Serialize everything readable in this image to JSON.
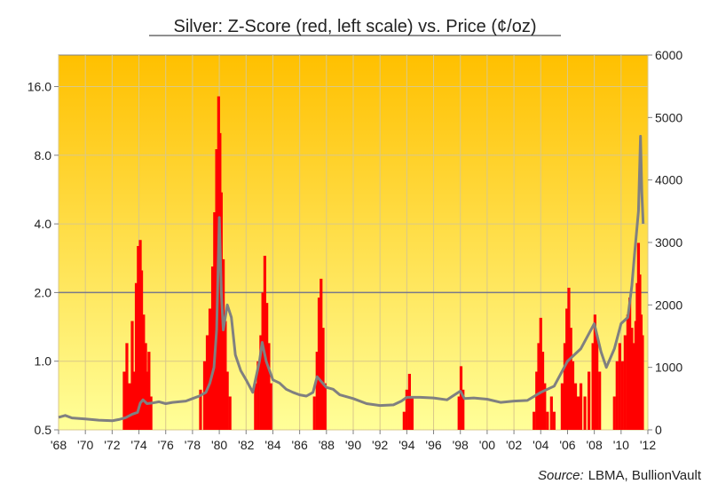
{
  "chart_data": {
    "type": "line",
    "title": "Silver: Z-Score (red, left scale) vs. Price (¢/oz)",
    "source_label": "Source:",
    "source_text": "LBMA, BullionVault",
    "x_tick_labels": [
      "'68",
      "'70",
      "'72",
      "'74",
      "'76",
      "'78",
      "'80",
      "'82",
      "'84",
      "'86",
      "'88",
      "'90",
      "'92",
      "'94",
      "'96",
      "'98",
      "'00",
      "'02",
      "'04",
      "'06",
      "'08",
      "'10",
      "'12"
    ],
    "x_range": [
      1968,
      2012
    ],
    "y_left": {
      "scale": "log2",
      "range": [
        0.5,
        22
      ],
      "tick_values": [
        0.5,
        1,
        2,
        4,
        8,
        16
      ],
      "tick_labels": [
        "0.5",
        "1.0",
        "2.0",
        "4.0",
        "8.0",
        "16.0"
      ]
    },
    "y_right": {
      "scale": "linear",
      "range": [
        0,
        6000
      ],
      "tick_values": [
        0,
        1000,
        2000,
        3000,
        4000,
        5000,
        6000
      ],
      "tick_labels": [
        "0",
        "1000",
        "2000",
        "3000",
        "4000",
        "5000",
        "6000"
      ]
    },
    "grid": true,
    "reference_line_left": 2.0,
    "colors": {
      "zscore": "#ff0000",
      "price": "#808080",
      "grid": "#d9c88a",
      "ref_line": "#7a7a8a",
      "bg_top": "#ffc000",
      "bg_bottom": "#ffff99"
    },
    "series": [
      {
        "key": "zscore",
        "axis": "left",
        "style": "spikes",
        "points": [
          [
            1972.9,
            0.9
          ],
          [
            1973.1,
            1.2
          ],
          [
            1973.3,
            0.8
          ],
          [
            1973.5,
            1.5
          ],
          [
            1973.6,
            0.9
          ],
          [
            1973.8,
            2.2
          ],
          [
            1973.95,
            3.2
          ],
          [
            1974.1,
            3.4
          ],
          [
            1974.2,
            2.5
          ],
          [
            1974.35,
            1.6
          ],
          [
            1974.5,
            1.2
          ],
          [
            1974.6,
            0.9
          ],
          [
            1974.75,
            1.1
          ],
          [
            1974.9,
            0.7
          ],
          [
            1978.6,
            0.75
          ],
          [
            1978.9,
            1.0
          ],
          [
            1979.1,
            1.3
          ],
          [
            1979.3,
            1.7
          ],
          [
            1979.5,
            2.6
          ],
          [
            1979.65,
            4.5
          ],
          [
            1979.8,
            8.5
          ],
          [
            1979.95,
            14.5
          ],
          [
            1980.05,
            10.0
          ],
          [
            1980.15,
            5.5
          ],
          [
            1980.3,
            2.8
          ],
          [
            1980.45,
            1.5
          ],
          [
            1980.6,
            0.9
          ],
          [
            1980.8,
            0.7
          ],
          [
            1982.7,
            0.8
          ],
          [
            1982.9,
            1.0
          ],
          [
            1983.1,
            1.3
          ],
          [
            1983.25,
            2.0
          ],
          [
            1983.4,
            2.9
          ],
          [
            1983.55,
            1.8
          ],
          [
            1983.7,
            1.2
          ],
          [
            1983.85,
            0.8
          ],
          [
            1987.1,
            0.7
          ],
          [
            1987.3,
            1.1
          ],
          [
            1987.45,
            1.9
          ],
          [
            1987.6,
            2.3
          ],
          [
            1987.75,
            1.4
          ],
          [
            1987.9,
            0.8
          ],
          [
            1993.8,
            0.6
          ],
          [
            1994.0,
            0.75
          ],
          [
            1994.2,
            0.88
          ],
          [
            1994.4,
            0.7
          ],
          [
            1997.9,
            0.7
          ],
          [
            1998.05,
            0.95
          ],
          [
            1998.2,
            0.75
          ],
          [
            2003.5,
            0.6
          ],
          [
            2003.7,
            0.9
          ],
          [
            2003.85,
            1.2
          ],
          [
            2004.0,
            1.55
          ],
          [
            2004.15,
            1.1
          ],
          [
            2004.3,
            0.8
          ],
          [
            2004.5,
            0.6
          ],
          [
            2004.8,
            0.7
          ],
          [
            2005.0,
            0.6
          ],
          [
            2005.6,
            0.8
          ],
          [
            2005.8,
            1.2
          ],
          [
            2005.95,
            1.7
          ],
          [
            2006.1,
            2.1
          ],
          [
            2006.25,
            1.4
          ],
          [
            2006.4,
            1.0
          ],
          [
            2006.6,
            0.8
          ],
          [
            2006.8,
            0.7
          ],
          [
            2007.0,
            0.8
          ],
          [
            2007.3,
            0.7
          ],
          [
            2007.6,
            0.9
          ],
          [
            2007.9,
            1.2
          ],
          [
            2008.05,
            1.6
          ],
          [
            2008.2,
            1.3
          ],
          [
            2008.4,
            0.9
          ],
          [
            2009.5,
            0.7
          ],
          [
            2009.7,
            1.0
          ],
          [
            2009.9,
            1.2
          ],
          [
            2010.1,
            1.0
          ],
          [
            2010.3,
            1.3
          ],
          [
            2010.5,
            1.6
          ],
          [
            2010.65,
            1.9
          ],
          [
            2010.8,
            1.4
          ],
          [
            2010.95,
            1.2
          ],
          [
            2011.1,
            1.5
          ],
          [
            2011.2,
            2.2
          ],
          [
            2011.3,
            3.3
          ],
          [
            2011.4,
            2.4
          ],
          [
            2011.5,
            1.6
          ],
          [
            2011.6,
            1.3
          ]
        ]
      },
      {
        "key": "price",
        "axis": "right",
        "style": "line",
        "points": [
          [
            1968.0,
            200
          ],
          [
            1968.5,
            230
          ],
          [
            1969.0,
            190
          ],
          [
            1970.0,
            175
          ],
          [
            1971.0,
            155
          ],
          [
            1972.0,
            145
          ],
          [
            1972.5,
            165
          ],
          [
            1973.0,
            195
          ],
          [
            1973.5,
            250
          ],
          [
            1973.9,
            280
          ],
          [
            1974.1,
            430
          ],
          [
            1974.3,
            480
          ],
          [
            1974.6,
            420
          ],
          [
            1975.0,
            430
          ],
          [
            1975.5,
            450
          ],
          [
            1976.0,
            420
          ],
          [
            1976.5,
            440
          ],
          [
            1977.0,
            450
          ],
          [
            1977.5,
            460
          ],
          [
            1978.0,
            500
          ],
          [
            1978.5,
            540
          ],
          [
            1979.0,
            600
          ],
          [
            1979.3,
            750
          ],
          [
            1979.6,
            1000
          ],
          [
            1979.8,
            1600
          ],
          [
            1980.0,
            3400
          ],
          [
            1980.15,
            2200
          ],
          [
            1980.3,
            1600
          ],
          [
            1980.6,
            2000
          ],
          [
            1980.9,
            1800
          ],
          [
            1981.2,
            1200
          ],
          [
            1981.6,
            950
          ],
          [
            1982.0,
            800
          ],
          [
            1982.5,
            600
          ],
          [
            1983.0,
            1100
          ],
          [
            1983.2,
            1400
          ],
          [
            1983.5,
            1100
          ],
          [
            1984.0,
            800
          ],
          [
            1984.5,
            750
          ],
          [
            1985.0,
            650
          ],
          [
            1985.5,
            600
          ],
          [
            1986.0,
            560
          ],
          [
            1986.5,
            540
          ],
          [
            1987.0,
            600
          ],
          [
            1987.3,
            850
          ],
          [
            1987.5,
            800
          ],
          [
            1988.0,
            680
          ],
          [
            1988.5,
            650
          ],
          [
            1989.0,
            560
          ],
          [
            1990.0,
            500
          ],
          [
            1991.0,
            420
          ],
          [
            1992.0,
            390
          ],
          [
            1993.0,
            400
          ],
          [
            1993.6,
            460
          ],
          [
            1994.0,
            520
          ],
          [
            1995.0,
            520
          ],
          [
            1996.0,
            510
          ],
          [
            1997.0,
            480
          ],
          [
            1998.0,
            620
          ],
          [
            1998.3,
            500
          ],
          [
            1999.0,
            510
          ],
          [
            2000.0,
            490
          ],
          [
            2001.0,
            440
          ],
          [
            2002.0,
            460
          ],
          [
            2003.0,
            470
          ],
          [
            2004.0,
            600
          ],
          [
            2004.5,
            650
          ],
          [
            2005.0,
            700
          ],
          [
            2006.0,
            1100
          ],
          [
            2006.5,
            1200
          ],
          [
            2007.0,
            1300
          ],
          [
            2008.0,
            1700
          ],
          [
            2008.5,
            1250
          ],
          [
            2008.9,
            1000
          ],
          [
            2009.5,
            1300
          ],
          [
            2010.0,
            1700
          ],
          [
            2010.5,
            1800
          ],
          [
            2010.8,
            2300
          ],
          [
            2011.0,
            2800
          ],
          [
            2011.3,
            3500
          ],
          [
            2011.45,
            4700
          ],
          [
            2011.55,
            3800
          ],
          [
            2011.65,
            3300
          ]
        ]
      }
    ]
  }
}
